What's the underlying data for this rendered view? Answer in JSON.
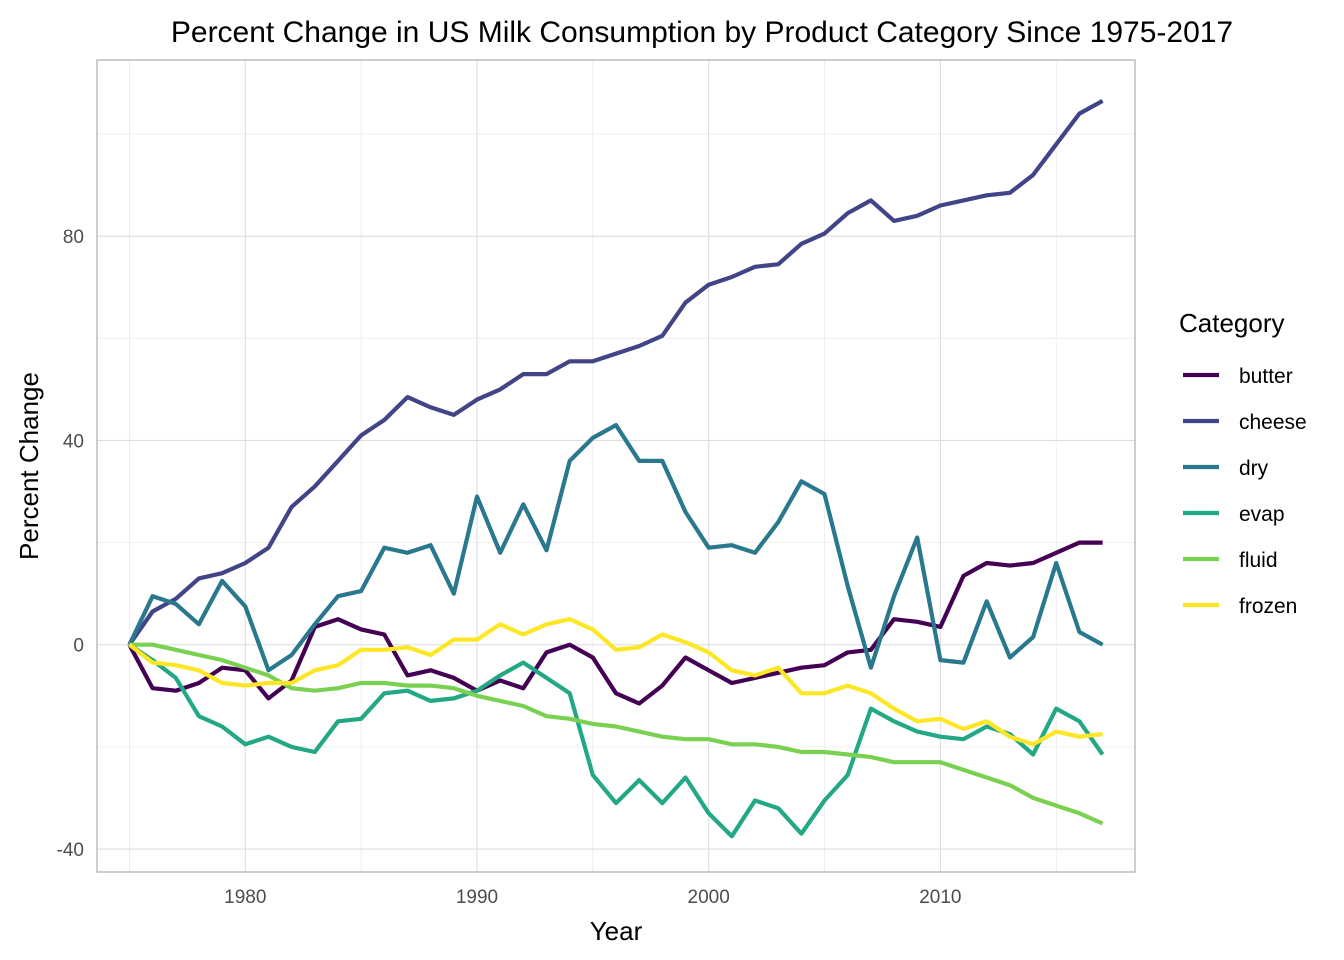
{
  "chart_data": {
    "type": "line",
    "title": "Percent Change in US Milk Consumption by Product Category Since 1975-2017",
    "xlabel": "Year",
    "ylabel": "Percent Change",
    "xlim": [
      1973.6,
      2018.4
    ],
    "ylim": [
      -44.5,
      114.5
    ],
    "x_ticks": [
      1980,
      1990,
      2000,
      2010
    ],
    "y_ticks": [
      -40,
      0,
      40,
      80
    ],
    "grid": true,
    "legend": {
      "title": "Category",
      "placement": "right"
    },
    "x": [
      1975,
      1976,
      1977,
      1978,
      1979,
      1980,
      1981,
      1982,
      1983,
      1984,
      1985,
      1986,
      1987,
      1988,
      1989,
      1990,
      1991,
      1992,
      1993,
      1994,
      1995,
      1996,
      1997,
      1998,
      1999,
      2000,
      2001,
      2002,
      2003,
      2004,
      2005,
      2006,
      2007,
      2008,
      2009,
      2010,
      2011,
      2012,
      2013,
      2014,
      2015,
      2016,
      2017
    ],
    "series": [
      {
        "name": "butter",
        "color": "#440154",
        "values": [
          0,
          -8.5,
          -9,
          -7.5,
          -4.5,
          -5,
          -10.5,
          -7,
          3.5,
          5,
          3,
          2,
          -6,
          -5,
          -6.5,
          -9,
          -7,
          -8.5,
          -1.5,
          0,
          -2.5,
          -9.5,
          -11.5,
          -8,
          -2.5,
          -5,
          -7.5,
          -6.5,
          -5.5,
          -4.5,
          -4,
          -1.5,
          -1,
          5,
          4.5,
          3.5,
          13.5,
          16,
          15.5,
          16,
          18,
          20,
          20
        ]
      },
      {
        "name": "cheese",
        "color": "#414487",
        "values": [
          0,
          6.5,
          9,
          13,
          14,
          16,
          19,
          27,
          31,
          36,
          41,
          44,
          48.5,
          46.5,
          45,
          48,
          50,
          53,
          53,
          55.5,
          55.5,
          57,
          58.5,
          60.5,
          67,
          70.5,
          72,
          74,
          74.5,
          78.5,
          80.5,
          84.5,
          87,
          83,
          84,
          86,
          87,
          88,
          88.5,
          92,
          98,
          104,
          106.5
        ]
      },
      {
        "name": "dry",
        "color": "#2A788E",
        "values": [
          0,
          9.5,
          8,
          4,
          12.5,
          7.5,
          -5,
          -2,
          4,
          9.5,
          10.5,
          19,
          18,
          19.5,
          10,
          29,
          18,
          27.5,
          18.5,
          36,
          40.5,
          43,
          36,
          36,
          26,
          19,
          19.5,
          18,
          24,
          32,
          29.5,
          11.5,
          -4.5,
          9.5,
          21,
          -3,
          -3.5,
          8.5,
          -2.5,
          1.5,
          16,
          2.5,
          0
        ]
      },
      {
        "name": "evap",
        "color": "#22A884",
        "values": [
          0,
          -3,
          -6.5,
          -14,
          -16,
          -19.5,
          -18,
          -20,
          -21,
          -15,
          -14.5,
          -9.5,
          -9,
          -11,
          -10.5,
          -9,
          -6,
          -3.5,
          -6.5,
          -9.5,
          -25.5,
          -31,
          -26.5,
          -31,
          -26,
          -33,
          -37.5,
          -30.5,
          -32,
          -37,
          -30.5,
          -25.5,
          -12.5,
          -15,
          -17,
          -18,
          -18.5,
          -16,
          -17.5,
          -21.5,
          -12.5,
          -15,
          -21.5
        ]
      },
      {
        "name": "fluid",
        "color": "#7AD151",
        "values": [
          0,
          0,
          -1,
          -2,
          -3,
          -4.5,
          -6,
          -8.5,
          -9,
          -8.5,
          -7.5,
          -7.5,
          -8,
          -8,
          -8.5,
          -10,
          -11,
          -12,
          -14,
          -14.5,
          -15.5,
          -16,
          -17,
          -18,
          -18.5,
          -18.5,
          -19.5,
          -19.5,
          -20,
          -21,
          -21,
          -21.5,
          -22,
          -23,
          -23,
          -23,
          -24.5,
          -26,
          -27.5,
          -30,
          -31.5,
          -33,
          -35
        ]
      },
      {
        "name": "frozen",
        "color": "#FDE725",
        "values": [
          0,
          -3.5,
          -4,
          -5,
          -7.5,
          -8,
          -7.5,
          -7.5,
          -5,
          -4,
          -1,
          -1,
          -0.5,
          -2,
          1,
          1,
          4,
          2,
          4,
          5,
          3,
          -1,
          -0.5,
          2,
          0.5,
          -1.5,
          -5,
          -6,
          -4.5,
          -9.5,
          -9.5,
          -8,
          -9.5,
          -12.5,
          -15,
          -14.5,
          -16.5,
          -15,
          -18,
          -19.5,
          -17,
          -18,
          -17.5
        ]
      }
    ]
  }
}
